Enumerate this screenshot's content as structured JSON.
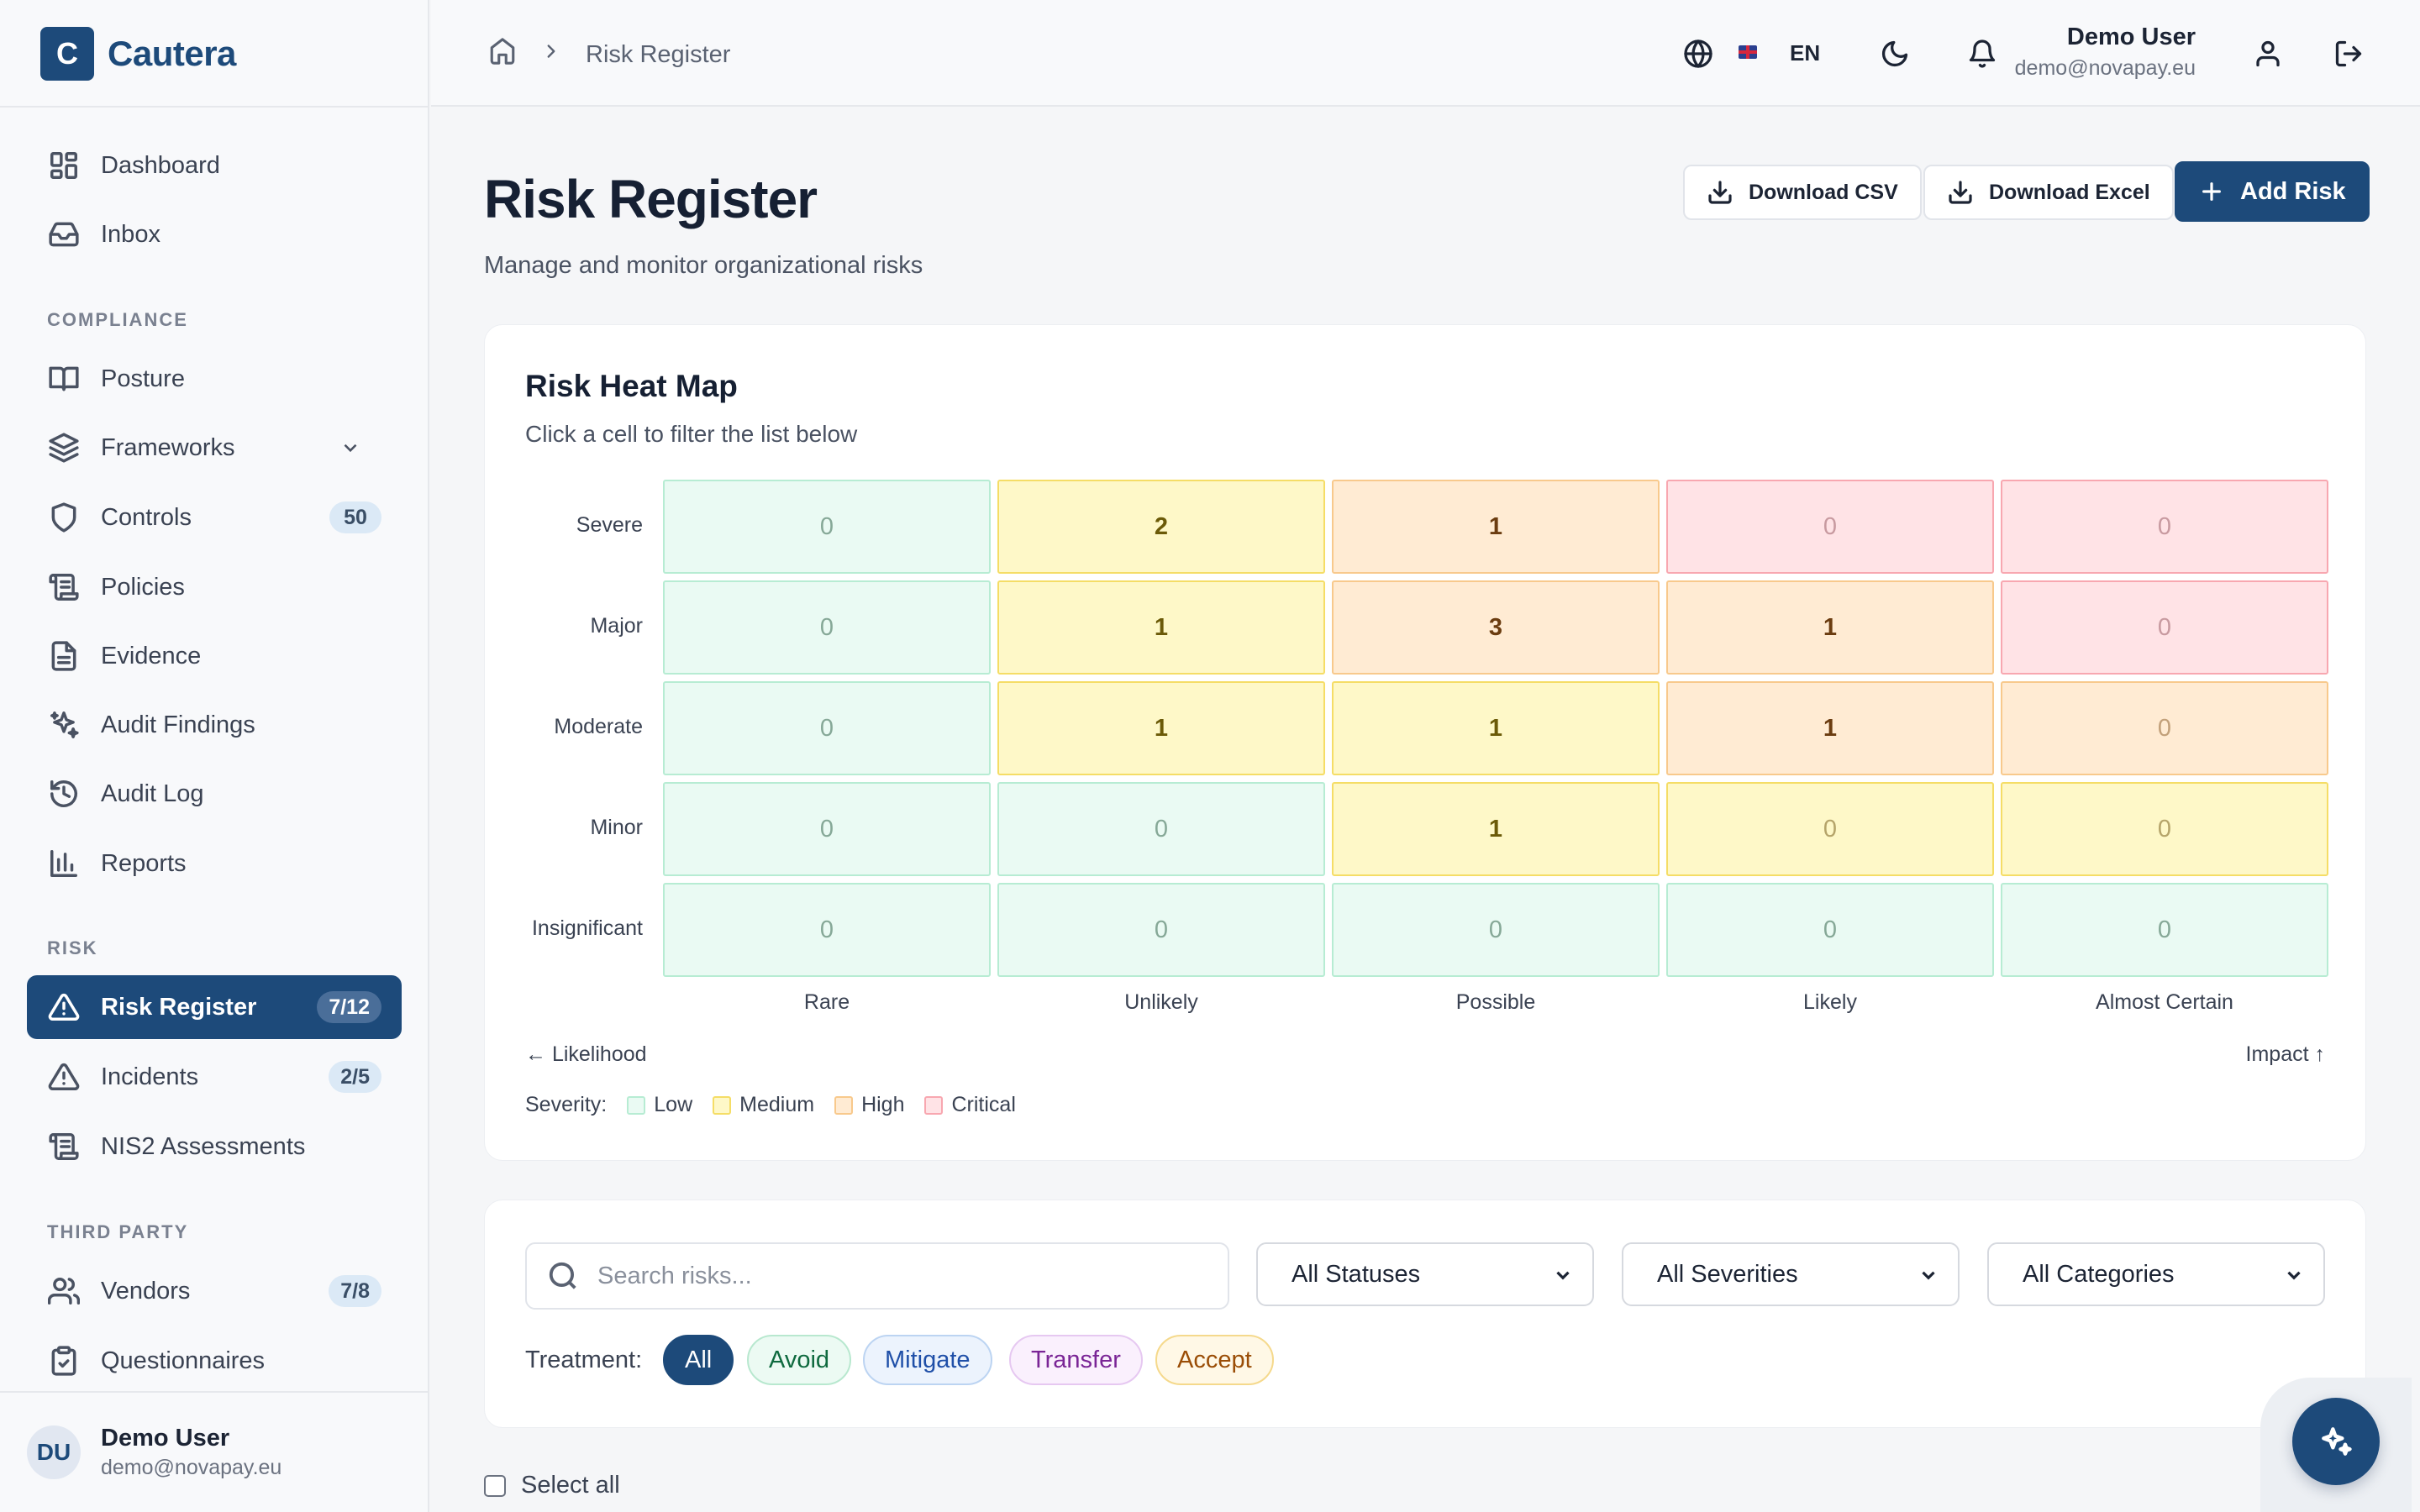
{
  "brand": {
    "logo_letter": "C",
    "name": "Cautera"
  },
  "sidebar": {
    "items_top": [
      {
        "label": "Dashboard",
        "icon": "dashboard-icon"
      },
      {
        "label": "Inbox",
        "icon": "inbox-icon"
      }
    ],
    "sections": [
      {
        "title": "COMPLIANCE",
        "items": [
          {
            "label": "Posture",
            "icon": "book-icon"
          },
          {
            "label": "Frameworks",
            "icon": "layers-icon",
            "expandable": true
          },
          {
            "label": "Controls",
            "icon": "shield-icon",
            "badge": "50"
          },
          {
            "label": "Policies",
            "icon": "scroll-icon"
          },
          {
            "label": "Evidence",
            "icon": "file-text-icon"
          },
          {
            "label": "Audit Findings",
            "icon": "sparkles-icon"
          },
          {
            "label": "Audit Log",
            "icon": "history-icon"
          },
          {
            "label": "Reports",
            "icon": "bar-chart-icon"
          }
        ]
      },
      {
        "title": "RISK",
        "items": [
          {
            "label": "Risk Register",
            "icon": "alert-triangle-icon",
            "badge": "7/12",
            "active": true
          },
          {
            "label": "Incidents",
            "icon": "alert-triangle-icon",
            "badge": "2/5"
          },
          {
            "label": "NIS2 Assessments",
            "icon": "scroll-icon"
          }
        ]
      },
      {
        "title": "THIRD PARTY",
        "items": [
          {
            "label": "Vendors",
            "icon": "users-icon",
            "badge": "7/8"
          },
          {
            "label": "Questionnaires",
            "icon": "clipboard-check-icon"
          }
        ]
      }
    ],
    "footer_user": {
      "initials": "DU",
      "name": "Demo User",
      "email": "demo@novapay.eu"
    }
  },
  "header": {
    "breadcrumb": "Risk Register",
    "language": "EN",
    "user": {
      "name": "Demo User",
      "email": "demo@novapay.eu"
    }
  },
  "page": {
    "title": "Risk Register",
    "subtitle": "Manage and monitor organizational risks",
    "buttons": {
      "csv": "Download CSV",
      "excel": "Download Excel",
      "add": "Add Risk"
    }
  },
  "heatmap": {
    "title": "Risk Heat Map",
    "subtitle": "Click a cell to filter the list below",
    "rows": [
      "Severe",
      "Major",
      "Moderate",
      "Minor",
      "Insignificant"
    ],
    "cols": [
      "Rare",
      "Unlikely",
      "Possible",
      "Likely",
      "Almost Certain"
    ],
    "values": [
      [
        0,
        2,
        1,
        0,
        0
      ],
      [
        0,
        1,
        3,
        1,
        0
      ],
      [
        0,
        1,
        1,
        1,
        0
      ],
      [
        0,
        0,
        1,
        0,
        0
      ],
      [
        0,
        0,
        0,
        0,
        0
      ]
    ],
    "severity": [
      [
        "low",
        "medium",
        "high",
        "critical",
        "critical"
      ],
      [
        "low",
        "medium",
        "high",
        "high",
        "critical"
      ],
      [
        "low",
        "medium",
        "medium",
        "high",
        "high"
      ],
      [
        "low",
        "low",
        "medium",
        "medium",
        "medium"
      ],
      [
        "low",
        "low",
        "low",
        "low",
        "low"
      ]
    ],
    "x_axis_note": "← Likelihood",
    "y_axis_note": "Impact ↑",
    "legend_label": "Severity:",
    "legend": [
      {
        "key": "low",
        "label": "Low",
        "color": "#eafaf3",
        "border": "#b7ecd3"
      },
      {
        "key": "medium",
        "label": "Medium",
        "color": "#fef8c8",
        "border": "#f5dd66"
      },
      {
        "key": "high",
        "label": "High",
        "color": "#ffebd3",
        "border": "#f8c98c"
      },
      {
        "key": "critical",
        "label": "Critical",
        "color": "#ffe3e6",
        "border": "#f8a7b0"
      }
    ]
  },
  "filters": {
    "search_placeholder": "Search risks...",
    "status": "All Statuses",
    "severity": "All Severities",
    "category": "All Categories",
    "treatment_label": "Treatment:",
    "treatments": [
      "All",
      "Avoid",
      "Mitigate",
      "Transfer",
      "Accept"
    ],
    "treatment_selected": "All"
  },
  "select_all_label": "Select all",
  "colors": {
    "accent": "#1d4a7a",
    "sidebar_bg": "#f8f9fb",
    "page_bg": "#f5f6f8"
  }
}
